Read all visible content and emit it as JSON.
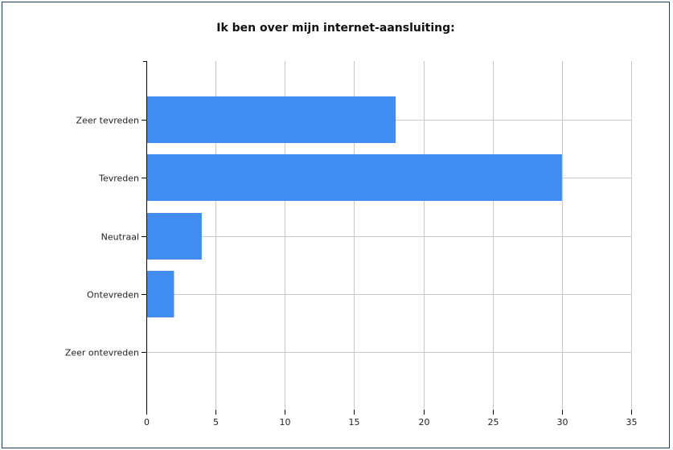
{
  "chart_data": {
    "type": "bar",
    "orientation": "horizontal",
    "title": "Ik ben over mijn internet-aansluiting:",
    "categories": [
      "Zeer tevreden",
      "Tevreden",
      "Neutraal",
      "Ontevreden",
      "Zeer ontevreden"
    ],
    "values": [
      18,
      30,
      4,
      2,
      0
    ],
    "xlim": [
      0,
      35
    ],
    "xticks": [
      0,
      5,
      10,
      15,
      20,
      25,
      30,
      35
    ],
    "grid": true,
    "legend": "none",
    "bar_color": "#418cf0",
    "xlabel": "",
    "ylabel": ""
  }
}
